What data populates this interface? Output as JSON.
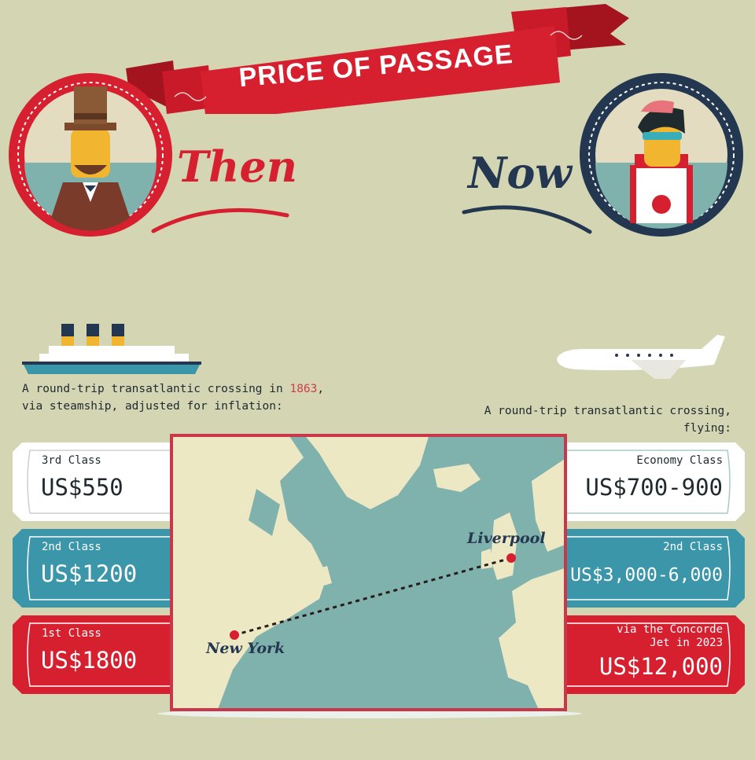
{
  "header": {
    "title": "PRICE OF PASSAGE",
    "then_label": "Then",
    "now_label": "Now"
  },
  "then": {
    "caption_before": "A round-trip transatlantic crossing in ",
    "caption_year": "1863",
    "caption_after": ", via steamship, adjusted for inflation:",
    "tickets": [
      {
        "class": "3rd Class",
        "price": "US$550"
      },
      {
        "class": "2nd Class",
        "price": "US$1200"
      },
      {
        "class": "1st Class",
        "price": "US$1800"
      }
    ]
  },
  "now": {
    "caption": "A round-trip transatlantic crossing, flying:",
    "tickets": [
      {
        "class": "Economy Class",
        "price": "US$700-900"
      },
      {
        "class": "2nd Class",
        "price": "US$3,000-6,000"
      },
      {
        "class": "via the Concorde Jet in 2023",
        "price": "US$12,000"
      }
    ]
  },
  "map": {
    "origin": "New York",
    "destination": "Liverpool"
  },
  "colors": {
    "background": "#d4d5b3",
    "red": "#d6202f",
    "teal": "#3a96a8",
    "navy": "#243750",
    "sea": "#7fb1ad",
    "land": "#ede8c4"
  }
}
